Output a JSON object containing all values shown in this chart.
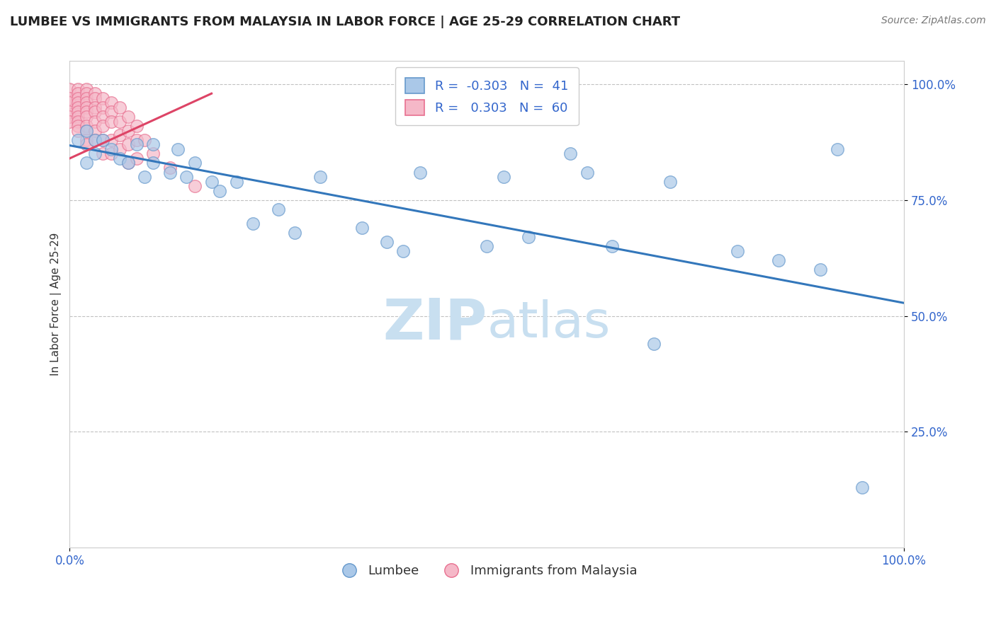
{
  "title": "LUMBEE VS IMMIGRANTS FROM MALAYSIA IN LABOR FORCE | AGE 25-29 CORRELATION CHART",
  "source_text": "Source: ZipAtlas.com",
  "ylabel": "In Labor Force | Age 25-29",
  "xlim": [
    0.0,
    1.0
  ],
  "ylim": [
    0.0,
    1.05
  ],
  "xtick_positions": [
    0.0,
    1.0
  ],
  "xtick_labels": [
    "0.0%",
    "100.0%"
  ],
  "ytick_positions": [
    0.25,
    0.5,
    0.75,
    1.0
  ],
  "ytick_labels": [
    "25.0%",
    "50.0%",
    "75.0%",
    "100.0%"
  ],
  "background_color": "#ffffff",
  "grid_color": "#bbbbbb",
  "lumbee_R": "-0.303",
  "lumbee_N": "41",
  "malaysia_R": "0.303",
  "malaysia_N": "60",
  "lumbee_color": "#aac8e8",
  "lumbee_edge": "#6699cc",
  "malaysia_color": "#f5b8c8",
  "malaysia_edge": "#e87090",
  "lumbee_trend_color": "#3377bb",
  "malaysia_trend_color": "#dd4466",
  "lumbee_scatter_x": [
    0.01,
    0.02,
    0.02,
    0.03,
    0.03,
    0.04,
    0.05,
    0.06,
    0.07,
    0.08,
    0.09,
    0.1,
    0.1,
    0.12,
    0.13,
    0.14,
    0.15,
    0.17,
    0.18,
    0.2,
    0.22,
    0.25,
    0.27,
    0.3,
    0.35,
    0.38,
    0.4,
    0.42,
    0.5,
    0.52,
    0.55,
    0.6,
    0.62,
    0.65,
    0.7,
    0.72,
    0.8,
    0.85,
    0.9,
    0.92,
    0.95
  ],
  "lumbee_scatter_y": [
    0.88,
    0.83,
    0.9,
    0.88,
    0.85,
    0.88,
    0.86,
    0.84,
    0.83,
    0.87,
    0.8,
    0.83,
    0.87,
    0.81,
    0.86,
    0.8,
    0.83,
    0.79,
    0.77,
    0.79,
    0.7,
    0.73,
    0.68,
    0.8,
    0.69,
    0.66,
    0.64,
    0.81,
    0.65,
    0.8,
    0.67,
    0.85,
    0.81,
    0.65,
    0.44,
    0.79,
    0.64,
    0.62,
    0.6,
    0.86,
    0.13
  ],
  "malaysia_scatter_x": [
    0.0,
    0.0,
    0.0,
    0.0,
    0.0,
    0.0,
    0.01,
    0.01,
    0.01,
    0.01,
    0.01,
    0.01,
    0.01,
    0.01,
    0.01,
    0.01,
    0.02,
    0.02,
    0.02,
    0.02,
    0.02,
    0.02,
    0.02,
    0.02,
    0.02,
    0.02,
    0.02,
    0.03,
    0.03,
    0.03,
    0.03,
    0.03,
    0.03,
    0.03,
    0.04,
    0.04,
    0.04,
    0.04,
    0.04,
    0.04,
    0.05,
    0.05,
    0.05,
    0.05,
    0.05,
    0.06,
    0.06,
    0.06,
    0.06,
    0.07,
    0.07,
    0.07,
    0.07,
    0.08,
    0.08,
    0.08,
    0.09,
    0.1,
    0.12,
    0.15
  ],
  "malaysia_scatter_y": [
    0.99,
    0.97,
    0.96,
    0.94,
    0.93,
    0.92,
    0.99,
    0.98,
    0.97,
    0.96,
    0.95,
    0.94,
    0.93,
    0.92,
    0.91,
    0.9,
    0.99,
    0.98,
    0.97,
    0.96,
    0.95,
    0.94,
    0.93,
    0.91,
    0.9,
    0.88,
    0.87,
    0.98,
    0.97,
    0.95,
    0.94,
    0.92,
    0.9,
    0.88,
    0.97,
    0.95,
    0.93,
    0.91,
    0.88,
    0.85,
    0.96,
    0.94,
    0.92,
    0.88,
    0.85,
    0.95,
    0.92,
    0.89,
    0.86,
    0.93,
    0.9,
    0.87,
    0.83,
    0.91,
    0.88,
    0.84,
    0.88,
    0.85,
    0.82,
    0.78
  ],
  "lumbee_trend_x": [
    0.0,
    1.0
  ],
  "lumbee_trend_y": [
    0.868,
    0.528
  ],
  "malaysia_trend_x": [
    0.0,
    0.17
  ],
  "malaysia_trend_y": [
    0.84,
    0.98
  ],
  "watermark_zip": "ZIP",
  "watermark_atlas": "atlas",
  "watermark_color": "#c8dff0",
  "legend_title_blue": "Lumbee",
  "legend_title_pink": "Immigrants from Malaysia"
}
